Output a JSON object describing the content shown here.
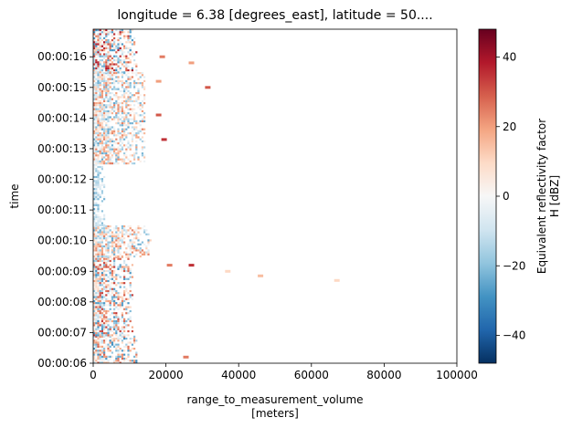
{
  "chart_data": {
    "type": "heatmap",
    "title": "longitude = 6.38 [degrees_east], latitude = 50....",
    "xlabel": "range_to_measurement_volume",
    "xlabel_units": "[meters]",
    "ylabel": "time",
    "xlim": [
      0,
      100000
    ],
    "x_ticks": [
      0,
      20000,
      40000,
      60000,
      80000,
      100000
    ],
    "x_tick_labels": [
      "0",
      "20000",
      "40000",
      "60000",
      "80000",
      "100000"
    ],
    "ylim_seconds": [
      6,
      16.9
    ],
    "y_tick_labels": [
      "00:00:06",
      "00:00:07",
      "00:00:08",
      "00:00:09",
      "00:00:10",
      "00:00:11",
      "00:00:12",
      "00:00:13",
      "00:00:14",
      "00:00:15",
      "00:00:16"
    ],
    "colorbar": {
      "label_line1": "Equivalent reflectivity factor",
      "label_line2": "H [dBZ]",
      "range": [
        -48,
        48
      ],
      "ticks": [
        -40,
        -20,
        0,
        20,
        40
      ],
      "tick_labels": [
        "−40",
        "−20",
        "0",
        "20",
        "40"
      ],
      "colormap": "RdBu_r",
      "colors": [
        "#053061",
        "#2166ac",
        "#4393c3",
        "#92c5de",
        "#d1e5f0",
        "#f7f7f7",
        "#fddbc7",
        "#f4a582",
        "#d6604d",
        "#b2182b",
        "#67001f"
      ]
    },
    "regions": [
      {
        "time": [
          6.0,
          6.9
        ],
        "range": [
          0,
          12000
        ],
        "value_range": [
          -30,
          30
        ]
      },
      {
        "time": [
          6.9,
          9.5
        ],
        "range": [
          0,
          11000
        ],
        "value_range": [
          -30,
          35
        ]
      },
      {
        "time": [
          9.5,
          10.5
        ],
        "range": [
          0,
          16000
        ],
        "value_range": [
          -25,
          25
        ]
      },
      {
        "time": [
          10.5,
          12.5
        ],
        "range": [
          0,
          3000
        ],
        "value_range": [
          -25,
          0
        ]
      },
      {
        "time": [
          12.5,
          15.5
        ],
        "range": [
          0,
          14000
        ],
        "value_range": [
          -25,
          25
        ]
      },
      {
        "time": [
          15.5,
          16.9
        ],
        "range": [
          0,
          12000
        ],
        "value_range": [
          -30,
          40
        ]
      }
    ],
    "isolated_echoes": [
      {
        "time": 16.0,
        "range": 19000,
        "value": 25
      },
      {
        "time": 15.8,
        "range": 27000,
        "value": 20
      },
      {
        "time": 14.1,
        "range": 18000,
        "value": 30
      },
      {
        "time": 13.3,
        "range": 19500,
        "value": 35
      },
      {
        "time": 15.0,
        "range": 31500,
        "value": 30
      },
      {
        "time": 15.2,
        "range": 18000,
        "value": 20
      },
      {
        "time": 9.2,
        "range": 27000,
        "value": 35
      },
      {
        "time": 9.2,
        "range": 21000,
        "value": 25
      },
      {
        "time": 9.0,
        "range": 37000,
        "value": 10
      },
      {
        "time": 8.85,
        "range": 46000,
        "value": 15
      },
      {
        "time": 6.2,
        "range": 25500,
        "value": 25
      },
      {
        "time": 8.7,
        "range": 67000,
        "value": 10
      }
    ]
  }
}
